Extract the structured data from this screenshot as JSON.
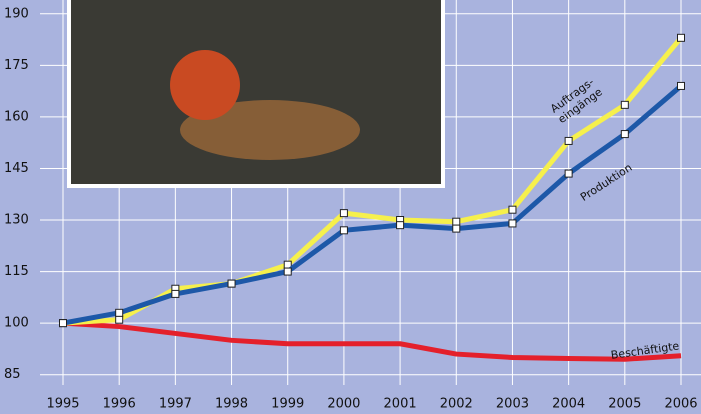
{
  "chart_data": {
    "type": "line",
    "categories": [
      "1995",
      "1996",
      "1997",
      "1998",
      "1999",
      "2000",
      "2001",
      "2002",
      "2003",
      "2004",
      "2005",
      "2006"
    ],
    "series": [
      {
        "name": "Auftrags-\neingänge",
        "color": "#f6f04c",
        "markers": true,
        "values": [
          100,
          101,
          110,
          111.5,
          117,
          132,
          130,
          129.5,
          133,
          153,
          163.5,
          183
        ]
      },
      {
        "name": "Produktion",
        "color": "#1d58a8",
        "markers": true,
        "values": [
          100,
          103,
          108.5,
          111.5,
          115,
          127,
          128.5,
          127.5,
          129,
          143.5,
          155,
          169
        ]
      },
      {
        "name": "Beschäftigte",
        "color": "#e4202b",
        "markers": false,
        "values": [
          100,
          99,
          97,
          95,
          94,
          94,
          94,
          91,
          90,
          89.7,
          89.5,
          90.5
        ]
      }
    ],
    "ylim": [
      82,
      194
    ],
    "yticks": [
      85,
      100,
      115,
      130,
      145,
      160,
      175,
      190
    ],
    "grid": true
  }
}
